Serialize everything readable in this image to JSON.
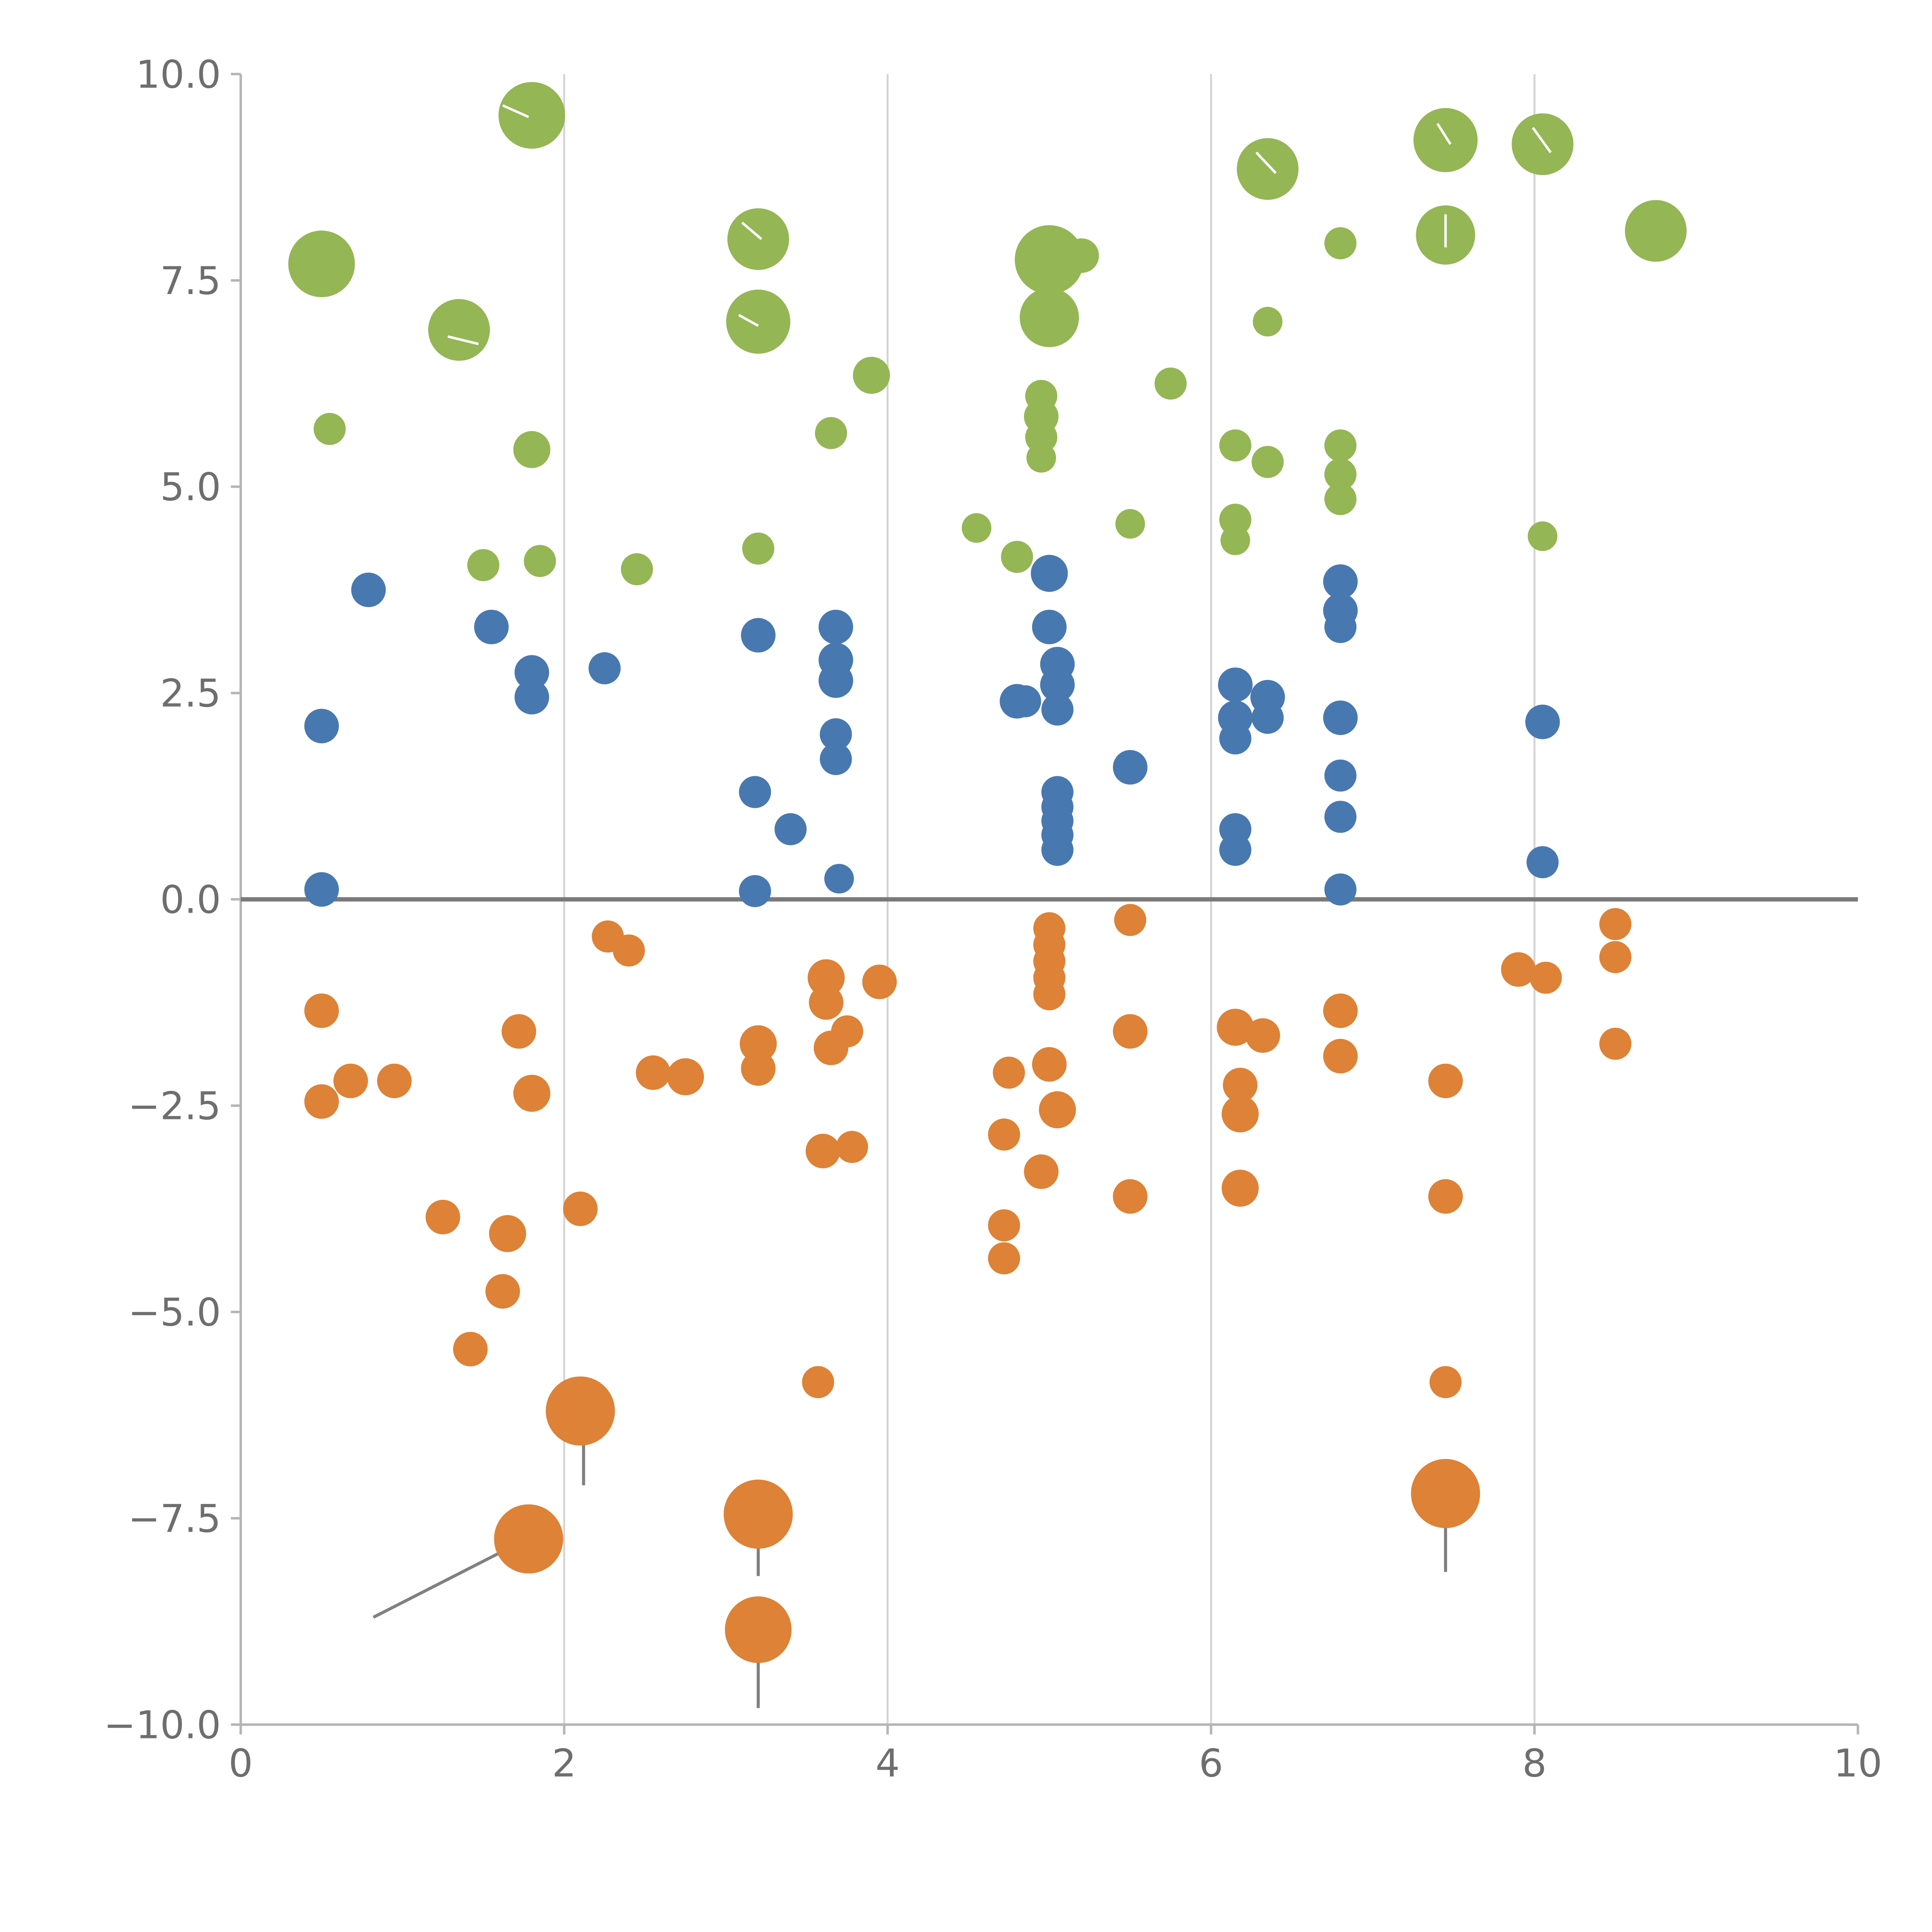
{
  "chart_data": {
    "type": "scatter",
    "title": "",
    "xlabel": "",
    "ylabel": "",
    "xlim": [
      0,
      10
    ],
    "ylim": [
      -10,
      10
    ],
    "x_ticks": [
      0,
      2,
      4,
      6,
      8,
      10
    ],
    "y_ticks": [
      10.0,
      7.5,
      5.0,
      2.5,
      0.0,
      -2.5,
      -5.0,
      -7.5,
      -10.0
    ],
    "x_tick_labels": [
      "0",
      "2",
      "4",
      "6",
      "8",
      "10"
    ],
    "y_tick_labels": [
      "10.0",
      "7.5",
      "5.0",
      "2.5",
      "0.0",
      "−2.5",
      "−5.0",
      "−7.5",
      "−10.0"
    ],
    "grid": {
      "vertical_lines_at": [
        2,
        4,
        6,
        8
      ],
      "color": "#d2d2d2",
      "horizontal": false
    },
    "zero_line": {
      "y": 0,
      "color": "#7a7a7a",
      "width": 3.5
    },
    "spines": {
      "color": "#b5b5b5",
      "bottom": true,
      "left": true,
      "top": false,
      "right": false
    },
    "legend": null,
    "series": [
      {
        "name": "green",
        "color": "#94b655",
        "points": [
          [
            0.5,
            7.7,
            27
          ],
          [
            0.55,
            5.7,
            13
          ],
          [
            1.35,
            6.9,
            25
          ],
          [
            1.5,
            4.05,
            13
          ],
          [
            1.8,
            9.5,
            27
          ],
          [
            1.8,
            5.45,
            15
          ],
          [
            1.85,
            4.1,
            13
          ],
          [
            2.45,
            4.0,
            13
          ],
          [
            3.2,
            8.0,
            25
          ],
          [
            3.2,
            7.0,
            26
          ],
          [
            3.2,
            4.25,
            13
          ],
          [
            3.65,
            5.65,
            13
          ],
          [
            3.9,
            6.35,
            15
          ],
          [
            4.55,
            4.5,
            12
          ],
          [
            4.8,
            4.15,
            13
          ],
          [
            5.0,
            7.75,
            28
          ],
          [
            5.0,
            7.05,
            24
          ],
          [
            5.2,
            7.8,
            14
          ],
          [
            4.95,
            6.1,
            13
          ],
          [
            4.95,
            5.85,
            14
          ],
          [
            4.95,
            5.6,
            13
          ],
          [
            4.95,
            5.35,
            12
          ],
          [
            5.5,
            4.55,
            12
          ],
          [
            5.75,
            6.25,
            13
          ],
          [
            6.35,
            8.85,
            25
          ],
          [
            6.35,
            7.0,
            12
          ],
          [
            6.15,
            5.5,
            13
          ],
          [
            6.35,
            5.3,
            13
          ],
          [
            6.15,
            4.6,
            13
          ],
          [
            6.15,
            4.35,
            12
          ],
          [
            6.8,
            5.5,
            13
          ],
          [
            6.8,
            5.15,
            13
          ],
          [
            6.8,
            4.85,
            13
          ],
          [
            6.8,
            7.95,
            13
          ],
          [
            7.45,
            9.2,
            26
          ],
          [
            7.45,
            8.05,
            24
          ],
          [
            8.05,
            9.15,
            25
          ],
          [
            8.05,
            4.4,
            12
          ],
          [
            8.75,
            8.1,
            25
          ]
        ]
      },
      {
        "name": "blue",
        "color": "#4878b0",
        "points": [
          [
            0.79,
            3.75,
            14
          ],
          [
            0.5,
            2.1,
            14
          ],
          [
            0.5,
            0.12,
            14
          ],
          [
            1.55,
            3.3,
            14
          ],
          [
            1.8,
            2.75,
            14
          ],
          [
            1.8,
            2.45,
            14
          ],
          [
            2.25,
            2.8,
            13
          ],
          [
            3.2,
            3.2,
            14
          ],
          [
            3.18,
            1.3,
            13
          ],
          [
            3.18,
            0.1,
            13
          ],
          [
            3.4,
            0.85,
            13
          ],
          [
            3.68,
            3.3,
            14
          ],
          [
            3.68,
            2.9,
            14
          ],
          [
            3.68,
            2.65,
            14
          ],
          [
            3.68,
            2.0,
            13
          ],
          [
            3.68,
            1.7,
            13
          ],
          [
            3.7,
            0.25,
            12
          ],
          [
            4.8,
            2.4,
            14
          ],
          [
            5.0,
            3.95,
            15
          ],
          [
            5.0,
            3.3,
            14
          ],
          [
            5.05,
            2.85,
            14
          ],
          [
            5.05,
            2.6,
            14
          ],
          [
            5.05,
            2.3,
            13
          ],
          [
            4.85,
            2.4,
            13
          ],
          [
            5.05,
            1.3,
            13
          ],
          [
            5.05,
            1.12,
            13
          ],
          [
            5.05,
            0.95,
            13
          ],
          [
            5.05,
            0.78,
            13
          ],
          [
            5.05,
            0.6,
            13
          ],
          [
            5.5,
            1.6,
            14
          ],
          [
            6.15,
            2.6,
            14
          ],
          [
            6.35,
            2.45,
            14
          ],
          [
            6.15,
            2.2,
            14
          ],
          [
            6.35,
            2.2,
            13
          ],
          [
            6.15,
            1.95,
            13
          ],
          [
            6.15,
            0.85,
            13
          ],
          [
            6.15,
            0.6,
            13
          ],
          [
            6.8,
            3.85,
            14
          ],
          [
            6.8,
            3.5,
            14
          ],
          [
            6.8,
            3.3,
            13
          ],
          [
            6.8,
            2.2,
            14
          ],
          [
            6.8,
            1.5,
            13
          ],
          [
            6.8,
            1.0,
            13
          ],
          [
            6.8,
            0.12,
            13
          ],
          [
            8.05,
            2.15,
            14
          ],
          [
            8.05,
            0.45,
            13
          ]
        ]
      },
      {
        "name": "orange",
        "color": "#dd8236",
        "points": [
          [
            0.5,
            -1.35,
            14
          ],
          [
            0.5,
            -2.45,
            14
          ],
          [
            0.68,
            -2.2,
            14
          ],
          [
            0.95,
            -2.2,
            14
          ],
          [
            1.25,
            -3.85,
            14
          ],
          [
            1.42,
            -5.45,
            14
          ],
          [
            1.65,
            -4.05,
            15
          ],
          [
            1.62,
            -4.75,
            14
          ],
          [
            1.72,
            -1.6,
            14
          ],
          [
            1.8,
            -2.35,
            15
          ],
          [
            1.78,
            -7.75,
            28
          ],
          [
            2.1,
            -6.2,
            28
          ],
          [
            2.1,
            -3.75,
            14
          ],
          [
            2.27,
            -0.45,
            13
          ],
          [
            2.4,
            -0.62,
            13
          ],
          [
            2.55,
            -2.1,
            14
          ],
          [
            2.75,
            -2.15,
            15
          ],
          [
            3.2,
            -1.75,
            15
          ],
          [
            3.2,
            -2.05,
            14
          ],
          [
            3.2,
            -7.45,
            28
          ],
          [
            3.2,
            -8.85,
            27
          ],
          [
            3.57,
            -5.85,
            13
          ],
          [
            3.62,
            -0.95,
            15
          ],
          [
            3.62,
            -1.25,
            14
          ],
          [
            3.65,
            -1.8,
            14
          ],
          [
            3.6,
            -3.05,
            14
          ],
          [
            3.78,
            -3.0,
            13
          ],
          [
            3.75,
            -1.6,
            13
          ],
          [
            3.95,
            -1.0,
            14
          ],
          [
            4.72,
            -4.35,
            13
          ],
          [
            4.72,
            -3.95,
            13
          ],
          [
            4.72,
            -2.85,
            13
          ],
          [
            4.75,
            -2.1,
            13
          ],
          [
            4.95,
            -3.3,
            14
          ],
          [
            5.0,
            -0.35,
            13
          ],
          [
            5.0,
            -0.55,
            13
          ],
          [
            5.0,
            -0.75,
            13
          ],
          [
            5.0,
            -0.95,
            13
          ],
          [
            5.0,
            -1.15,
            13
          ],
          [
            5.0,
            -2.0,
            14
          ],
          [
            5.05,
            -2.55,
            15
          ],
          [
            5.5,
            -0.25,
            13
          ],
          [
            5.5,
            -1.6,
            14
          ],
          [
            5.5,
            -3.6,
            14
          ],
          [
            6.15,
            -1.55,
            15
          ],
          [
            6.32,
            -1.65,
            14
          ],
          [
            6.18,
            -2.25,
            14
          ],
          [
            6.18,
            -2.6,
            15
          ],
          [
            6.18,
            -3.5,
            15
          ],
          [
            6.8,
            -1.35,
            14
          ],
          [
            6.8,
            -1.9,
            14
          ],
          [
            7.45,
            -2.2,
            14
          ],
          [
            7.45,
            -3.6,
            14
          ],
          [
            7.45,
            -5.85,
            13
          ],
          [
            7.45,
            -7.2,
            28
          ],
          [
            7.9,
            -0.85,
            14
          ],
          [
            8.07,
            -0.95,
            13
          ],
          [
            8.5,
            -0.3,
            13
          ],
          [
            8.5,
            -0.7,
            13
          ],
          [
            8.5,
            -1.75,
            13
          ]
        ]
      }
    ],
    "annotation_lines": [
      {
        "x1": 0.82,
        "y1": -8.7,
        "x2": 1.7,
        "y2": -7.82,
        "color": "#808080",
        "width": 2.5
      },
      {
        "x1": 2.12,
        "y1": -6.5,
        "x2": 2.12,
        "y2": -7.1,
        "color": "#808080",
        "width": 2.5
      },
      {
        "x1": 3.2,
        "y1": -7.7,
        "x2": 3.2,
        "y2": -8.2,
        "color": "#808080",
        "width": 2.5
      },
      {
        "x1": 3.2,
        "y1": -9.1,
        "x2": 3.2,
        "y2": -9.8,
        "color": "#808080",
        "width": 2.5
      },
      {
        "x1": 7.45,
        "y1": -7.4,
        "x2": 7.45,
        "y2": -8.15,
        "color": "#808080",
        "width": 2.5
      }
    ],
    "leader_lines_white": [
      {
        "x1": 1.62,
        "y1": 9.62,
        "x2": 1.78,
        "y2": 9.48
      },
      {
        "x1": 3.1,
        "y1": 8.2,
        "x2": 3.22,
        "y2": 8.0
      },
      {
        "x1": 3.08,
        "y1": 7.08,
        "x2": 3.2,
        "y2": 6.95
      },
      {
        "x1": 1.28,
        "y1": 6.82,
        "x2": 1.47,
        "y2": 6.73
      },
      {
        "x1": 6.28,
        "y1": 9.05,
        "x2": 6.4,
        "y2": 8.8
      },
      {
        "x1": 7.4,
        "y1": 9.4,
        "x2": 7.48,
        "y2": 9.15
      },
      {
        "x1": 7.45,
        "y1": 8.3,
        "x2": 7.45,
        "y2": 7.9
      },
      {
        "x1": 7.99,
        "y1": 9.35,
        "x2": 8.1,
        "y2": 9.05
      }
    ],
    "colors": {
      "green": "#94b655",
      "blue": "#4878b0",
      "orange": "#dd8236",
      "grid": "#d2d2d2",
      "zero_line": "#7a7a7a",
      "tick_label": "#6e6e6e",
      "spine": "#b5b5b5",
      "background": "#ffffff"
    }
  }
}
